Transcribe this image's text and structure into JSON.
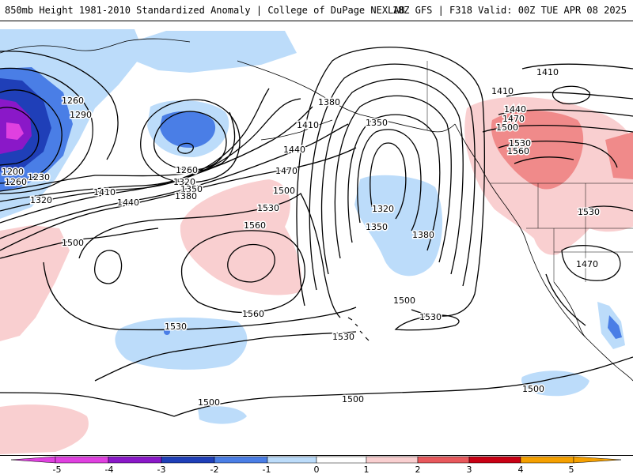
{
  "header": {
    "title_left": "850mb Height 1981-2010 Standardized Anomaly | College of DuPage NEXLAB",
    "title_right": "18Z GFS | F318 Valid: 00Z TUE APR 08 2025"
  },
  "colors": {
    "neg5": "#e040e0",
    "neg4": "#8a18c8",
    "neg3": "#1f3fb8",
    "neg2": "#4a7ee6",
    "neg1": "#bcdcfa",
    "pos1": "#f9cfd0",
    "pos2": "#f08a8a",
    "pos3": "#e8585c",
    "pos4": "#c80014",
    "pos5": "#f5a000"
  },
  "contour_labels": [
    "1260",
    "1290",
    "1200",
    "1230",
    "1260",
    "1320",
    "1410",
    "1440",
    "1260",
    "1320",
    "1350",
    "1380",
    "1380",
    "1410",
    "1440",
    "1470",
    "1350",
    "1500",
    "1530",
    "1560",
    "1500",
    "1320",
    "1350",
    "1380",
    "1500",
    "1560",
    "1530",
    "1530",
    "1530",
    "1500",
    "1500",
    "1500",
    "1410",
    "1410",
    "1440",
    "1470",
    "1500",
    "1530",
    "1560",
    "1530",
    "1470"
  ],
  "legend": {
    "tick_labels": [
      "-5",
      "-4",
      "-3",
      "-2",
      "-1",
      "0",
      "1",
      "2",
      "3",
      "4",
      "5"
    ]
  }
}
